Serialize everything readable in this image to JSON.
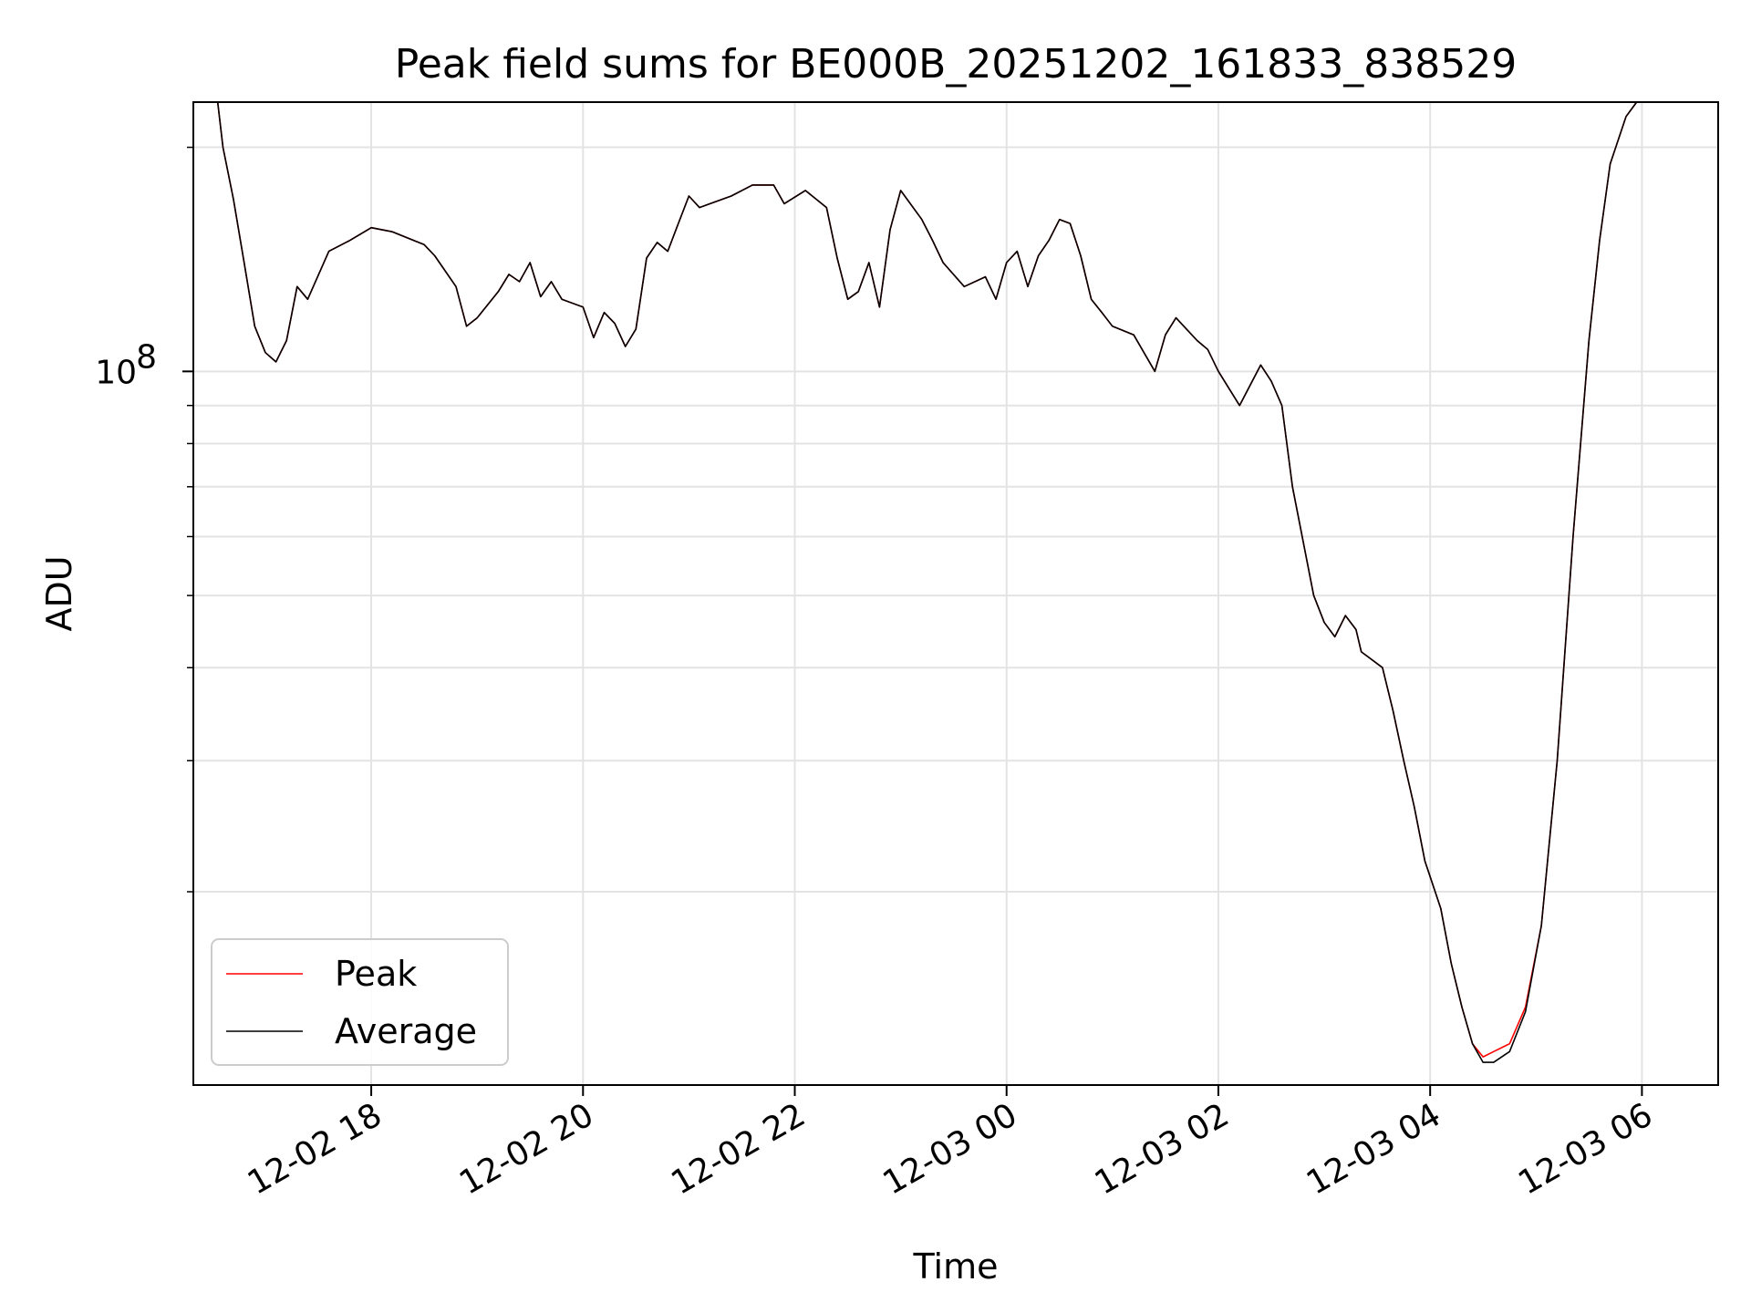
{
  "chart_data": {
    "type": "line",
    "title": "Peak field sums for BE000B_20251202_161833_838529",
    "xlabel": "Time",
    "ylabel": "ADU",
    "yscale": "log",
    "grid": true,
    "legend_position": "lower-left",
    "x_unit": "hours since 12-02 00:00",
    "xlim": [
      16.32,
      30.72
    ],
    "ylim": [
      11000000,
      230000000
    ],
    "x_ticks": [
      {
        "value": 18,
        "label": "12-02 18"
      },
      {
        "value": 20,
        "label": "12-02 20"
      },
      {
        "value": 22,
        "label": "12-02 22"
      },
      {
        "value": 24,
        "label": "12-03 00"
      },
      {
        "value": 26,
        "label": "12-03 02"
      },
      {
        "value": 28,
        "label": "12-03 04"
      },
      {
        "value": 30,
        "label": "12-03 06"
      }
    ],
    "y_major_ticks": [
      {
        "value": 100000000,
        "base": "10",
        "exp": "8"
      }
    ],
    "y_minor_ticks": [
      20000000,
      30000000,
      40000000,
      50000000,
      60000000,
      70000000,
      80000000,
      90000000,
      200000000
    ],
    "series": [
      {
        "name": "Peak",
        "color": "#ff0000",
        "x": [
          16.45,
          16.55,
          16.6,
          16.7,
          16.8,
          16.9,
          17.0,
          17.1,
          17.2,
          17.3,
          17.4,
          17.6,
          17.8,
          18.0,
          18.2,
          18.4,
          18.5,
          18.6,
          18.8,
          18.9,
          19.0,
          19.2,
          19.3,
          19.4,
          19.5,
          19.6,
          19.7,
          19.8,
          20.0,
          20.1,
          20.2,
          20.3,
          20.4,
          20.5,
          20.6,
          20.7,
          20.8,
          20.9,
          21.0,
          21.1,
          21.2,
          21.4,
          21.6,
          21.8,
          21.9,
          22.1,
          22.3,
          22.4,
          22.5,
          22.6,
          22.7,
          22.8,
          22.9,
          23.0,
          23.2,
          23.3,
          23.4,
          23.6,
          23.8,
          23.9,
          24.0,
          24.1,
          24.2,
          24.3,
          24.4,
          24.5,
          24.6,
          24.7,
          24.8,
          24.9,
          25.0,
          25.2,
          25.4,
          25.5,
          25.6,
          25.8,
          25.9,
          26.0,
          26.2,
          26.4,
          26.5,
          26.6,
          26.7,
          26.9,
          27.0,
          27.1,
          27.2,
          27.3,
          27.35,
          27.45,
          27.55,
          27.65,
          27.75,
          27.85,
          27.95,
          28.1,
          28.2,
          28.3,
          28.4,
          28.5,
          28.6,
          28.75,
          28.9,
          29.05,
          29.2,
          29.35,
          29.5,
          29.6,
          29.7,
          29.85,
          29.95,
          30.05,
          30.2,
          30.3,
          30.4,
          30.5,
          30.6,
          30.7
        ],
        "values": [
          230000000,
          230000000,
          200000000,
          170000000,
          140000000,
          115000000,
          106000000,
          103000000,
          110000000,
          130000000,
          125000000,
          145000000,
          150000000,
          156000000,
          154000000,
          150000000,
          148000000,
          143000000,
          130000000,
          115000000,
          118000000,
          128000000,
          135000000,
          132000000,
          140000000,
          126000000,
          132000000,
          125000000,
          122000000,
          111000000,
          120000000,
          116000000,
          108000000,
          114000000,
          142000000,
          149000000,
          145000000,
          158000000,
          172000000,
          166000000,
          168000000,
          172000000,
          178000000,
          178000000,
          168000000,
          175000000,
          166000000,
          142000000,
          125000000,
          128000000,
          140000000,
          122000000,
          155000000,
          175000000,
          160000000,
          150000000,
          140000000,
          130000000,
          134000000,
          125000000,
          140000000,
          145000000,
          130000000,
          143000000,
          150000000,
          160000000,
          158000000,
          143000000,
          125000000,
          120000000,
          115000000,
          112000000,
          100000000,
          112000000,
          118000000,
          110000000,
          107000000,
          100000000,
          90000000,
          102000000,
          97000000,
          90000000,
          70000000,
          50000000,
          46000000,
          44000000,
          47000000,
          45000000,
          42000000,
          41000000,
          40000000,
          35000000,
          30000000,
          26000000,
          22000000,
          19000000,
          16000000,
          14000000,
          12500000,
          12000000,
          12200000,
          12500000,
          14000000,
          18000000,
          30000000,
          60000000,
          110000000,
          150000000,
          190000000,
          220000000,
          230000000,
          230000000,
          230000000,
          230000000,
          230000000,
          230000000,
          230000000,
          230000000
        ]
      },
      {
        "name": "Average",
        "color": "#000000",
        "x": [
          16.45,
          16.55,
          16.6,
          16.7,
          16.8,
          16.9,
          17.0,
          17.1,
          17.2,
          17.3,
          17.4,
          17.6,
          17.8,
          18.0,
          18.2,
          18.4,
          18.5,
          18.6,
          18.8,
          18.9,
          19.0,
          19.2,
          19.3,
          19.4,
          19.5,
          19.6,
          19.7,
          19.8,
          20.0,
          20.1,
          20.2,
          20.3,
          20.4,
          20.5,
          20.6,
          20.7,
          20.8,
          20.9,
          21.0,
          21.1,
          21.2,
          21.4,
          21.6,
          21.8,
          21.9,
          22.1,
          22.3,
          22.4,
          22.5,
          22.6,
          22.7,
          22.8,
          22.9,
          23.0,
          23.2,
          23.3,
          23.4,
          23.6,
          23.8,
          23.9,
          24.0,
          24.1,
          24.2,
          24.3,
          24.4,
          24.5,
          24.6,
          24.7,
          24.8,
          24.9,
          25.0,
          25.2,
          25.4,
          25.5,
          25.6,
          25.8,
          25.9,
          26.0,
          26.2,
          26.4,
          26.5,
          26.6,
          26.7,
          26.9,
          27.0,
          27.1,
          27.2,
          27.3,
          27.35,
          27.45,
          27.55,
          27.65,
          27.75,
          27.85,
          27.95,
          28.1,
          28.2,
          28.3,
          28.4,
          28.5,
          28.6,
          28.75,
          28.9,
          29.05,
          29.2,
          29.35,
          29.5,
          29.6,
          29.7,
          29.85,
          29.95,
          30.05,
          30.2,
          30.3,
          30.4,
          30.5,
          30.6,
          30.7
        ],
        "values": [
          230000000,
          230000000,
          200000000,
          170000000,
          140000000,
          115000000,
          106000000,
          103000000,
          110000000,
          130000000,
          125000000,
          145000000,
          150000000,
          156000000,
          154000000,
          150000000,
          148000000,
          143000000,
          130000000,
          115000000,
          118000000,
          128000000,
          135000000,
          132000000,
          140000000,
          126000000,
          132000000,
          125000000,
          122000000,
          111000000,
          120000000,
          116000000,
          108000000,
          114000000,
          142000000,
          149000000,
          145000000,
          158000000,
          172000000,
          166000000,
          168000000,
          172000000,
          178000000,
          178000000,
          168000000,
          175000000,
          166000000,
          142000000,
          125000000,
          128000000,
          140000000,
          122000000,
          155000000,
          175000000,
          160000000,
          150000000,
          140000000,
          130000000,
          134000000,
          125000000,
          140000000,
          145000000,
          130000000,
          143000000,
          150000000,
          160000000,
          158000000,
          143000000,
          125000000,
          120000000,
          115000000,
          112000000,
          100000000,
          112000000,
          118000000,
          110000000,
          107000000,
          100000000,
          90000000,
          102000000,
          97000000,
          90000000,
          70000000,
          50000000,
          46000000,
          44000000,
          47000000,
          45000000,
          42000000,
          41000000,
          40000000,
          35000000,
          30000000,
          26000000,
          22000000,
          19000000,
          16000000,
          14000000,
          12500000,
          11800000,
          11800000,
          12200000,
          13800000,
          18000000,
          30000000,
          60000000,
          110000000,
          150000000,
          190000000,
          220000000,
          230000000,
          230000000,
          230000000,
          230000000,
          230000000,
          230000000,
          230000000,
          230000000
        ]
      }
    ]
  }
}
